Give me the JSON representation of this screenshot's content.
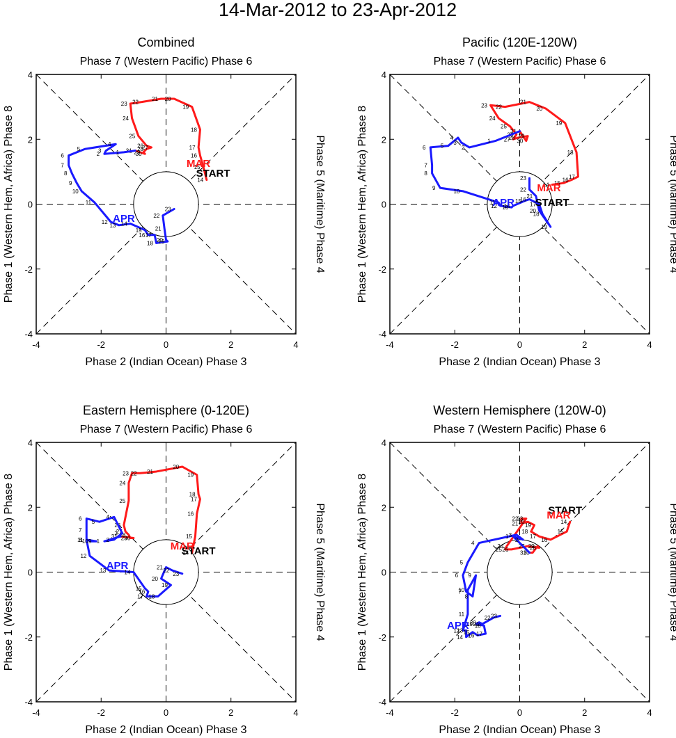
{
  "title": "14-Mar-2012 to 23-Apr-2012",
  "axis_labels": {
    "top": "Phase 7 (Western Pacific) Phase 6",
    "bottom": "Phase 2 (Indian Ocean) Phase 3",
    "left": "Phase 1 (Western Hem, Africa) Phase 8",
    "right": "Phase 5 (Maritime) Phase 4"
  },
  "colors": {
    "mar": "#ff1a1a",
    "apr": "#1a1aff",
    "start": "#000000"
  },
  "chart_data": [
    {
      "type": "line",
      "title": "Combined",
      "xlim": [
        -4,
        4
      ],
      "ylim": [
        -4,
        4
      ],
      "ticks": [
        -4,
        -2,
        0,
        2,
        4
      ],
      "labels": {
        "mar": "MAR",
        "apr": "APR",
        "start": "START"
      },
      "series": [
        {
          "name": "MAR",
          "days": [
            14,
            15,
            16,
            17,
            18,
            19,
            20,
            21,
            22,
            23,
            24,
            25,
            26,
            27,
            28,
            29,
            30,
            31
          ],
          "x": [
            1.25,
            1.15,
            1.05,
            1.0,
            1.05,
            0.8,
            0.25,
            -0.15,
            -0.75,
            -1.1,
            -1.05,
            -0.85,
            -0.6,
            -0.45,
            -0.6,
            -0.7,
            -0.65,
            -0.95
          ],
          "y": [
            0.75,
            1.15,
            1.5,
            1.75,
            2.3,
            3.0,
            3.25,
            3.25,
            3.15,
            3.1,
            2.65,
            2.1,
            1.8,
            1.75,
            1.7,
            1.6,
            1.55,
            1.65
          ]
        },
        {
          "name": "APR",
          "days": [
            1,
            2,
            3,
            4,
            5,
            6,
            7,
            8,
            9,
            10,
            11,
            12,
            13,
            14,
            15,
            16,
            17,
            18,
            19,
            20,
            21,
            22,
            23
          ],
          "x": [
            -1.3,
            -1.9,
            -1.85,
            -1.55,
            -2.5,
            -3.0,
            -3.0,
            -2.9,
            -2.75,
            -2.6,
            -2.2,
            -1.7,
            -1.45,
            -1.1,
            -0.65,
            -0.55,
            -0.35,
            -0.3,
            0.05,
            0.0,
            -0.05,
            -0.1,
            0.25
          ],
          "y": [
            1.6,
            1.55,
            1.65,
            1.85,
            1.7,
            1.5,
            1.2,
            0.95,
            0.65,
            0.4,
            0.05,
            -0.55,
            -0.65,
            -0.6,
            -0.8,
            -0.95,
            -0.95,
            -1.2,
            -1.15,
            -1.1,
            -0.75,
            -0.35,
            -0.15
          ]
        }
      ],
      "label_pos": {
        "start": [
          1.45,
          0.85
        ],
        "mar": [
          1.0,
          1.15
        ],
        "apr": [
          -1.3,
          -0.55
        ]
      }
    },
    {
      "type": "line",
      "title": "Pacific (120E-120W)",
      "xlim": [
        -4,
        4
      ],
      "ylim": [
        -4,
        4
      ],
      "ticks": [
        -4,
        -2,
        0,
        2,
        4
      ],
      "labels": {
        "mar": "MAR",
        "apr": "APR",
        "start": "START"
      },
      "series": [
        {
          "name": "MAR",
          "days": [
            14,
            15,
            16,
            17,
            18,
            19,
            20,
            21,
            22,
            23,
            24,
            25,
            26,
            27,
            28,
            29,
            30,
            31
          ],
          "x": [
            1.0,
            1.35,
            1.6,
            1.8,
            1.75,
            1.4,
            0.8,
            0.3,
            -0.45,
            -0.9,
            -0.65,
            -0.3,
            -0.1,
            -0.2,
            -0.05,
            0.25,
            0.2,
            0.0
          ],
          "y": [
            0.6,
            0.65,
            0.75,
            0.85,
            1.6,
            2.5,
            2.95,
            3.15,
            3.0,
            3.05,
            2.65,
            2.4,
            2.15,
            2.0,
            2.05,
            2.1,
            1.95,
            2.25
          ]
        },
        {
          "name": "APR",
          "days": [
            1,
            2,
            3,
            4,
            5,
            6,
            7,
            8,
            9,
            10,
            11,
            12,
            13,
            14,
            15,
            16,
            17,
            18,
            19,
            20,
            21,
            22,
            23
          ],
          "x": [
            -0.75,
            -1.55,
            -1.8,
            -1.9,
            -2.2,
            -2.75,
            -2.7,
            -2.7,
            -2.45,
            -1.75,
            -0.65,
            -0.6,
            -0.25,
            -0.2,
            0.15,
            0.3,
            0.6,
            0.7,
            0.95,
            0.6,
            0.5,
            0.3,
            0.3
          ],
          "y": [
            1.95,
            1.75,
            1.9,
            2.05,
            1.8,
            1.75,
            1.2,
            0.95,
            0.5,
            0.4,
            0.05,
            -0.05,
            -0.1,
            -0.05,
            0.1,
            0.15,
            0.0,
            -0.3,
            -0.7,
            -0.2,
            0.25,
            0.45,
            0.8
          ]
        }
      ],
      "label_pos": {
        "start": [
          1.0,
          -0.05
        ],
        "mar": [
          0.9,
          0.4
        ],
        "apr": [
          -0.5,
          -0.05
        ]
      }
    },
    {
      "type": "line",
      "title": "Eastern Hemisphere (0-120E)",
      "xlim": [
        -4,
        4
      ],
      "ylim": [
        -4,
        4
      ],
      "ticks": [
        -4,
        -2,
        0,
        2,
        4
      ],
      "labels": {
        "mar": "MAR",
        "apr": "APR",
        "start": "START"
      },
      "series": [
        {
          "name": "MAR",
          "days": [
            14,
            15,
            16,
            17,
            18,
            19,
            20,
            21,
            22,
            23,
            24,
            25,
            26,
            27,
            28,
            29,
            30,
            31
          ],
          "x": [
            0.8,
            0.9,
            0.95,
            1.05,
            1.0,
            0.95,
            0.5,
            -0.3,
            -0.8,
            -1.05,
            -1.15,
            -1.15,
            -1.3,
            -1.25,
            -1.15,
            -1.1,
            -1.0,
            -1.4
          ],
          "y": [
            0.6,
            1.1,
            1.8,
            2.25,
            2.4,
            3.0,
            3.25,
            3.1,
            3.05,
            3.05,
            2.75,
            2.2,
            1.45,
            1.25,
            1.15,
            1.05,
            1.05,
            1.1
          ]
        },
        {
          "name": "APR",
          "days": [
            1,
            2,
            3,
            4,
            5,
            6,
            7,
            8,
            9,
            10,
            11,
            12,
            13,
            14,
            15,
            16,
            17,
            18,
            19,
            20,
            21,
            22,
            23
          ],
          "x": [
            -1.9,
            -1.6,
            -1.35,
            -1.6,
            -2.05,
            -2.45,
            -2.45,
            -2.45,
            -2.15,
            -2.3,
            -2.45,
            -2.35,
            -1.75,
            -1.0,
            -0.65,
            -0.55,
            -0.6,
            -0.25,
            0.15,
            -0.15,
            0.0,
            0.2,
            0.5
          ],
          "y": [
            0.95,
            1.0,
            1.2,
            1.7,
            1.55,
            1.65,
            1.3,
            1.0,
            0.95,
            0.95,
            1.0,
            0.5,
            0.05,
            0.0,
            -0.5,
            -0.6,
            -0.75,
            -0.75,
            -0.4,
            -0.2,
            0.15,
            0.05,
            -0.05
          ]
        }
      ],
      "label_pos": {
        "start": [
          1.0,
          0.55
        ],
        "mar": [
          0.5,
          0.7
        ],
        "apr": [
          -1.5,
          0.1
        ]
      }
    },
    {
      "type": "line",
      "title": "Western Hemisphere (120W-0)",
      "xlim": [
        -4,
        4
      ],
      "ylim": [
        -4,
        4
      ],
      "ticks": [
        -4,
        -2,
        0,
        2,
        4
      ],
      "labels": {
        "mar": "MAR",
        "apr": "APR",
        "start": "START"
      },
      "series": [
        {
          "name": "MAR",
          "days": [
            14,
            15,
            16,
            17,
            18,
            19,
            20,
            21,
            22,
            23,
            24,
            25,
            26,
            27,
            28,
            29,
            30,
            31
          ],
          "x": [
            1.55,
            1.45,
            0.95,
            0.6,
            0.35,
            0.45,
            0.25,
            0.05,
            0.05,
            0.2,
            -0.4,
            -0.45,
            -0.25,
            0.25,
            0.6,
            0.55,
            0.4,
            0.3
          ],
          "y": [
            1.55,
            1.25,
            1.0,
            1.1,
            1.25,
            1.45,
            1.55,
            1.5,
            1.65,
            1.65,
            0.8,
            0.7,
            0.7,
            0.8,
            0.75,
            0.8,
            0.6,
            0.6
          ]
        },
        {
          "name": "APR",
          "days": [
            1,
            2,
            3,
            4,
            5,
            6,
            7,
            8,
            9,
            10,
            11,
            12,
            13,
            14,
            15,
            16,
            17,
            18,
            19,
            20,
            21,
            22,
            23
          ],
          "x": [
            -0.2,
            0.1,
            -0.1,
            -1.25,
            -1.6,
            -1.75,
            -1.65,
            -1.45,
            -1.35,
            -1.6,
            -1.6,
            -1.75,
            -1.65,
            -1.65,
            -1.45,
            -1.3,
            -1.05,
            -1.1,
            -1.35,
            -1.25,
            -1.15,
            -0.8,
            -0.6
          ],
          "y": [
            1.1,
            1.0,
            1.15,
            0.9,
            0.3,
            -0.1,
            -0.6,
            -0.75,
            -0.1,
            -0.55,
            -1.3,
            -1.8,
            -1.8,
            -2.0,
            -1.85,
            -1.95,
            -1.9,
            -1.65,
            -1.6,
            -1.55,
            -1.6,
            -1.4,
            -1.35
          ]
        }
      ],
      "label_pos": {
        "start": [
          1.4,
          1.8
        ],
        "mar": [
          1.2,
          1.65
        ],
        "apr": [
          -1.9,
          -1.75
        ]
      }
    }
  ]
}
